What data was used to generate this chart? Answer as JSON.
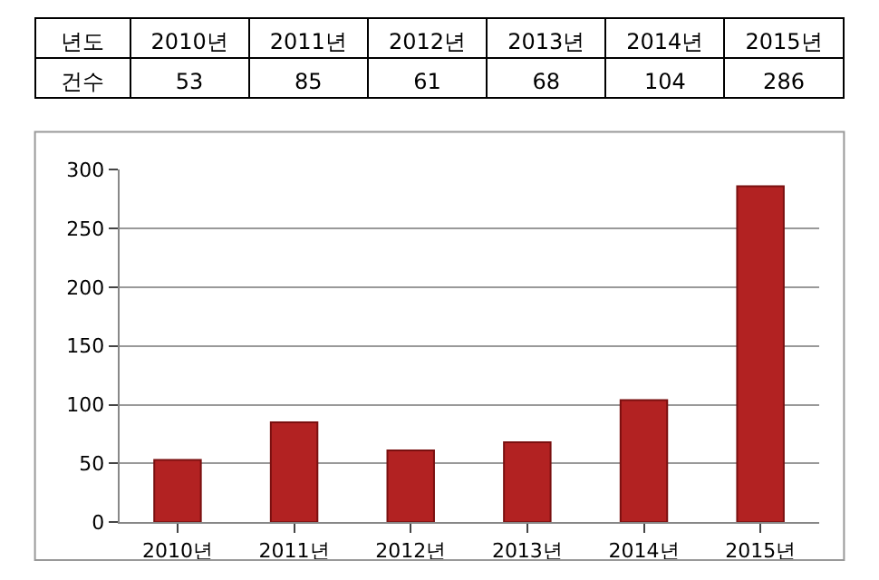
{
  "chart_data": {
    "type": "bar",
    "xlabel": "년도",
    "ylabel": "건수",
    "categories": [
      "2010년",
      "2011년",
      "2012년",
      "2013년",
      "2014년",
      "2015년"
    ],
    "values": [
      53,
      85,
      61,
      68,
      104,
      286
    ],
    "color": "#b22222",
    "ylim": [
      0,
      300
    ],
    "yticks": [
      0,
      50,
      100,
      150,
      200,
      250,
      300
    ],
    "grid": "y",
    "data_labels": true
  }
}
